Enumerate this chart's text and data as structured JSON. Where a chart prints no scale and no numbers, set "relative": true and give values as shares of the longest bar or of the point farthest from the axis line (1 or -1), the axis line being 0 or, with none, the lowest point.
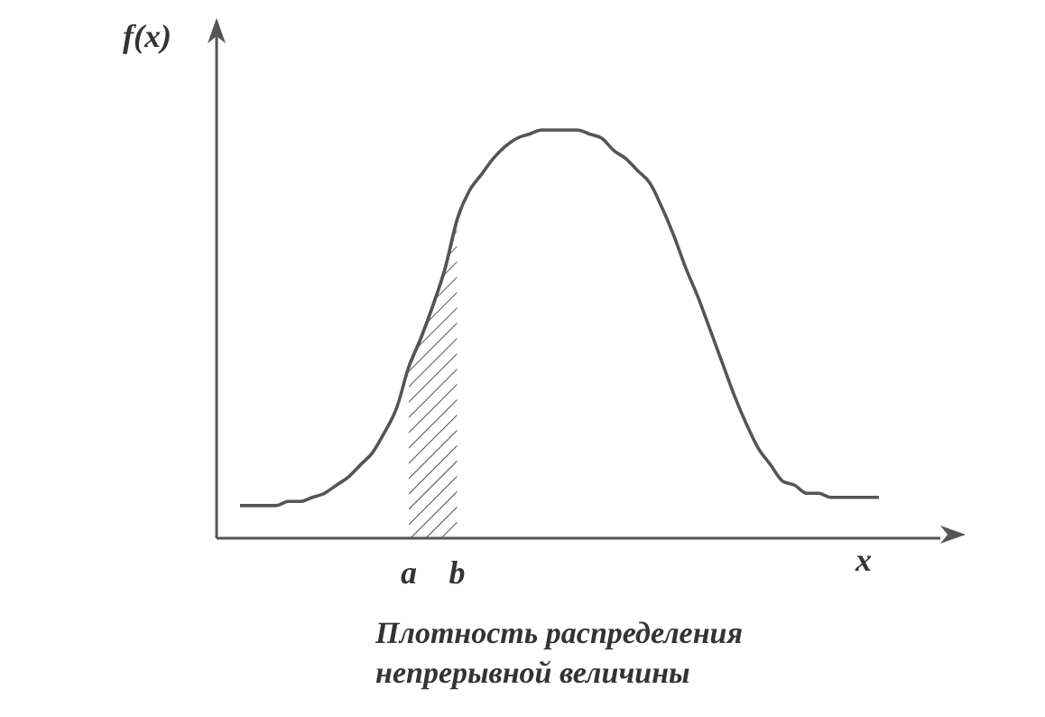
{
  "chart_data": {
    "type": "line",
    "relative": true,
    "ylabel": "f(x)",
    "xlabel": "x",
    "annotations": [
      "Плотность распределения непрерывной величины"
    ],
    "categories": [
      null,
      null,
      null,
      null,
      null,
      null,
      null,
      null,
      null,
      null,
      null,
      null,
      null,
      null,
      "a",
      null,
      null,
      null,
      "b",
      null,
      null,
      null,
      null,
      null,
      null,
      null,
      null,
      null,
      null,
      null,
      null,
      null,
      null,
      null,
      null,
      null,
      null,
      null,
      null,
      null,
      null,
      null,
      null,
      null,
      null,
      null,
      null,
      null,
      null,
      null,
      null,
      null,
      null,
      null
    ],
    "series": [
      {
        "color": "#555555",
        "values": [
          0.08,
          0.08,
          0.08,
          0.08,
          0.09,
          0.09,
          0.1,
          0.11,
          0.13,
          0.15,
          0.18,
          0.21,
          0.26,
          0.32,
          0.42,
          0.49,
          0.57,
          0.66,
          0.78,
          0.85,
          0.89,
          0.93,
          0.96,
          0.98,
          0.99,
          1.0,
          1.0,
          1.0,
          1.0,
          0.99,
          0.98,
          0.95,
          0.93,
          0.9,
          0.87,
          0.81,
          0.74,
          0.66,
          0.59,
          0.51,
          0.43,
          0.35,
          0.28,
          0.22,
          0.18,
          0.14,
          0.13,
          0.11,
          0.11,
          0.1,
          0.1,
          0.1,
          0.1,
          0.1
        ]
      },
      {
        "type": "area",
        "color": "#555555",
        "values": [
          null,
          null,
          null,
          null,
          null,
          null,
          null,
          null,
          null,
          null,
          null,
          null,
          null,
          null,
          0.42,
          0.49,
          0.57,
          0.66,
          0.78,
          null,
          null,
          null,
          null,
          null,
          null,
          null,
          null,
          null,
          null,
          null,
          null,
          null,
          null,
          null,
          null,
          null,
          null,
          null,
          null,
          null,
          null,
          null,
          null,
          null,
          null,
          null,
          null,
          null,
          null,
          null,
          null,
          null,
          null,
          null
        ]
      }
    ]
  }
}
